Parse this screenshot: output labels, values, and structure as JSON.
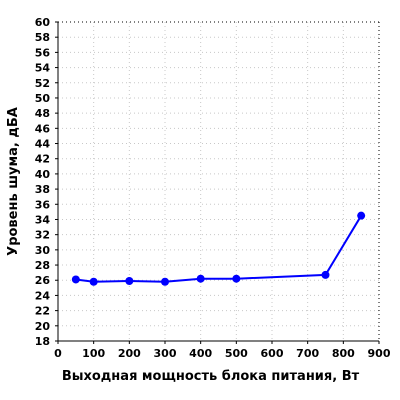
{
  "chart_data": {
    "type": "line",
    "title": "",
    "xlabel": "Выходная мощность блока питания, Вт",
    "ylabel": "Уровень шума, дБА",
    "xlim": [
      0,
      900
    ],
    "ylim": [
      18,
      60
    ],
    "x_ticks": [
      0,
      100,
      200,
      300,
      400,
      500,
      600,
      700,
      800,
      900
    ],
    "y_ticks": [
      18,
      20,
      22,
      24,
      26,
      28,
      30,
      32,
      34,
      36,
      38,
      40,
      42,
      44,
      46,
      48,
      50,
      52,
      54,
      56,
      58,
      60
    ],
    "grid": true,
    "series": [
      {
        "color": "#0000ff",
        "x": [
          50,
          100,
          200,
          300,
          400,
          500,
          750,
          850
        ],
        "y": [
          26.1,
          25.8,
          25.9,
          25.8,
          26.2,
          26.2,
          26.7,
          34.5
        ]
      }
    ]
  }
}
